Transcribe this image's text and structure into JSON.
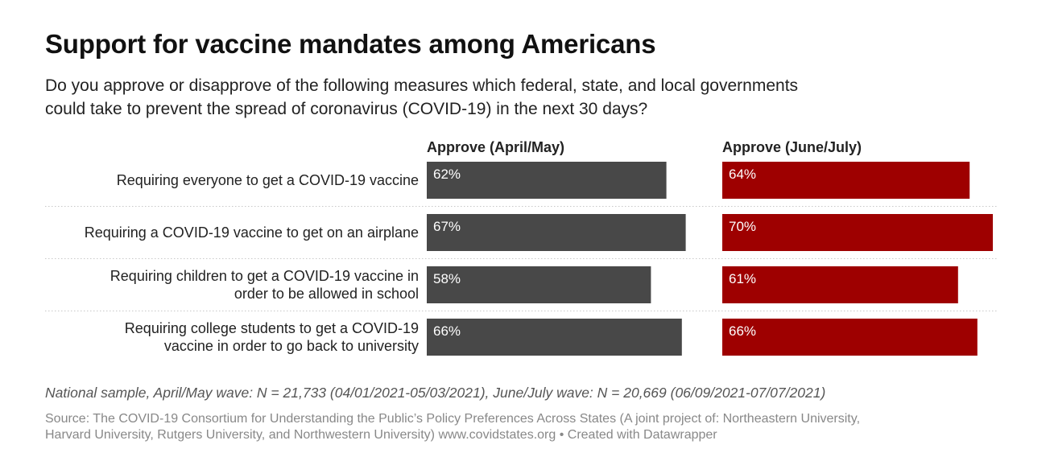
{
  "title": "Support for vaccine mandates among Americans",
  "subtitle_lines": [
    "Do you approve or disapprove of the following measures which federal, state, and local governments",
    "could take to prevent the spread of coronavirus (COVID-19) in the next 30 days?"
  ],
  "chart_data": {
    "type": "bar",
    "orientation": "horizontal",
    "categories": [
      [
        "Requiring everyone to get a COVID-19 vaccine"
      ],
      [
        "Requiring a COVID-19 vaccine to get on an airplane"
      ],
      [
        "Requiring children to get a COVID-19 vaccine in",
        "order to be allowed in school"
      ],
      [
        "Requiring college students to get a COVID-19",
        "vaccine in order to go back to university"
      ]
    ],
    "series": [
      {
        "name": "Approve (April/May)",
        "values": [
          62,
          67,
          58,
          66
        ],
        "labels": [
          "62%",
          "67%",
          "58%",
          "66%"
        ],
        "color": "#484848"
      },
      {
        "name": "Approve (June/July)",
        "values": [
          64,
          70,
          61,
          66
        ],
        "labels": [
          "64%",
          "70%",
          "61%",
          "66%"
        ],
        "color": "#9e0000"
      }
    ],
    "value_unit": "%",
    "xlim": [
      0,
      100
    ],
    "grid": false
  },
  "notes": "National sample, April/May wave: N = 21,733 (04/01/2021-05/03/2021), June/July wave: N = 20,669 (06/09/2021-07/07/2021)",
  "source_lines": [
    "Source: The COVID-19 Consortium for Understanding the Public’s Policy Preferences Across States (A joint project of: Northeastern University,",
    "Harvard University, Rutgers University, and Northwestern University) www.covidstates.org • Created with Datawrapper"
  ]
}
